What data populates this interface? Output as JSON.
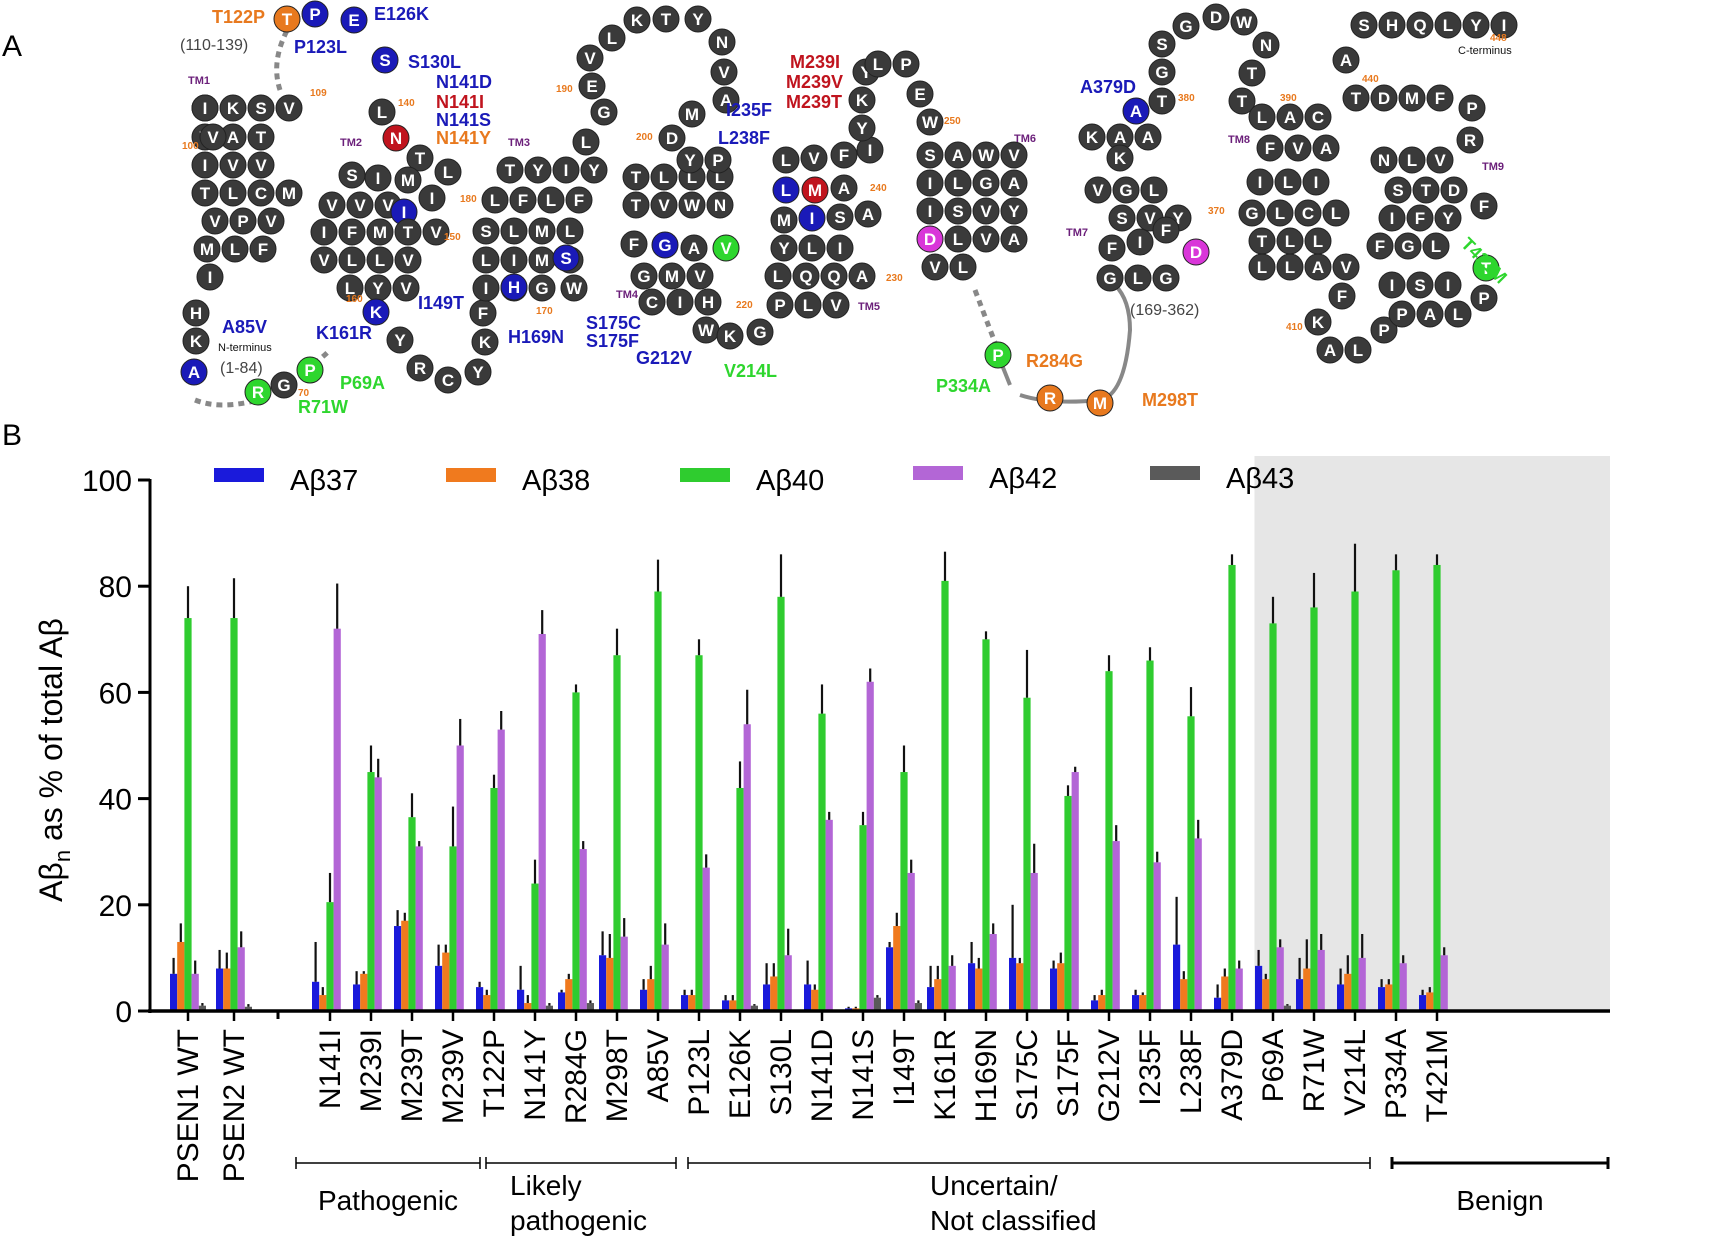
{
  "panel_labels": {
    "a": "A",
    "b": "B"
  },
  "topology": {
    "labels": {
      "tm1": "TM1",
      "tm2": "TM2",
      "tm3": "TM3",
      "tm4": "TM4",
      "tm5": "TM5",
      "tm6": "TM6",
      "tm7": "TM7",
      "tm8": "TM8",
      "tm9": "TM9",
      "n_terminus": "N-terminus",
      "c_terminus": "C-terminus",
      "range_n": "(1-84)",
      "range_110": "(110-139)",
      "range_169": "(169-362)"
    },
    "numbers": [
      "70",
      "100",
      "109",
      "140",
      "150",
      "160",
      "170",
      "180",
      "190",
      "200",
      "220",
      "230",
      "240",
      "250",
      "370",
      "380",
      "390",
      "410",
      "440",
      "448"
    ],
    "variant_labels": [
      {
        "text": "T122P",
        "color": "#e8791e"
      },
      {
        "text": "P123L",
        "color": "#1a1ab8"
      },
      {
        "text": "E126K",
        "color": "#1a1ab8"
      },
      {
        "text": "S130L",
        "color": "#1a1ab8"
      },
      {
        "text": "N141D",
        "color": "#1a1ab8"
      },
      {
        "text": "N141I",
        "color": "#c0141e"
      },
      {
        "text": "N141S",
        "color": "#1a1ab8"
      },
      {
        "text": "N141Y",
        "color": "#e8791e"
      },
      {
        "text": "A85V",
        "color": "#1a1ab8"
      },
      {
        "text": "K161R",
        "color": "#1a1ab8"
      },
      {
        "text": "I149T",
        "color": "#1a1ab8"
      },
      {
        "text": "H169N",
        "color": "#1a1ab8"
      },
      {
        "text": "S175C",
        "color": "#1a1ab8"
      },
      {
        "text": "S175F",
        "color": "#1a1ab8"
      },
      {
        "text": "G212V",
        "color": "#1a1ab8"
      },
      {
        "text": "V214L",
        "color": "#2ed62e"
      },
      {
        "text": "I235F",
        "color": "#1a1ab8"
      },
      {
        "text": "L238F",
        "color": "#1a1ab8"
      },
      {
        "text": "M239I",
        "color": "#c0141e"
      },
      {
        "text": "M239V",
        "color": "#c0141e"
      },
      {
        "text": "M239T",
        "color": "#c0141e"
      },
      {
        "text": "P69A",
        "color": "#2ed62e"
      },
      {
        "text": "R71W",
        "color": "#2ed62e"
      },
      {
        "text": "P334A",
        "color": "#2ed62e"
      },
      {
        "text": "R284G",
        "color": "#e8791e"
      },
      {
        "text": "M298T",
        "color": "#e8791e"
      },
      {
        "text": "A379D",
        "color": "#1a1ab8"
      },
      {
        "text": "T421M",
        "color": "#2ed62e"
      }
    ],
    "residue_colors": {
      "default": "#3a3a3a",
      "pathogenic": "#c0141e",
      "likely_pathogenic": "#e8791e",
      "uncertain": "#1a1ab8",
      "benign": "#2ed62e",
      "magenta": "#d936d9"
    }
  },
  "chart_data": {
    "type": "bar",
    "ylabel": "Aβn as % of total Aβ",
    "ylim": [
      0,
      100
    ],
    "yticks": [
      0,
      20,
      40,
      60,
      80,
      100
    ],
    "legend": [
      {
        "name": "Aβ37",
        "color": "#1a1adb"
      },
      {
        "name": "Aβ38",
        "color": "#f07a1e"
      },
      {
        "name": "Aβ40",
        "color": "#2fcc2f"
      },
      {
        "name": "Aβ42",
        "color": "#b366d6"
      },
      {
        "name": "Aβ43",
        "color": "#5a5a5a"
      }
    ],
    "categories": [
      "PSEN1 WT",
      "PSEN2 WT",
      "N141I",
      "M239I",
      "M239T",
      "M239V",
      "T122P",
      "N141Y",
      "R284G",
      "M298T",
      "A85V",
      "P123L",
      "E126K",
      "S130L",
      "N141D",
      "N141S",
      "I149T",
      "K161R",
      "H169N",
      "S175C",
      "S175F",
      "G212V",
      "I235F",
      "L238F",
      "A379D",
      "P69A",
      "R71W",
      "V214L",
      "P334A",
      "T421M"
    ],
    "series": [
      {
        "name": "Aβ37",
        "values": [
          7,
          8,
          5.5,
          5,
          16,
          8.5,
          4.5,
          4,
          3.5,
          10.5,
          4,
          3,
          2,
          5,
          5,
          0.5,
          12,
          4.5,
          9,
          10,
          8,
          2,
          3,
          12.5,
          2.5,
          8.5,
          6,
          5,
          4.5,
          3
        ]
      },
      {
        "name": "Aβ38",
        "values": [
          13,
          8,
          3,
          7,
          17,
          11,
          3,
          1.5,
          6,
          10,
          6,
          3,
          2,
          6.5,
          4,
          0.5,
          16,
          6,
          8,
          9,
          9,
          3,
          3,
          6,
          6.5,
          6,
          8,
          7,
          5,
          3.5
        ]
      },
      {
        "name": "Aβ40",
        "values": [
          74,
          74,
          20.5,
          45,
          36.5,
          31,
          42,
          24,
          60,
          67,
          79,
          67,
          42,
          78,
          56,
          35,
          45,
          81,
          70,
          59,
          40.5,
          64,
          66,
          55.5,
          84,
          73,
          76,
          79,
          83,
          84
        ]
      },
      {
        "name": "Aβ42",
        "values": [
          7,
          12,
          72,
          44,
          31,
          50,
          53,
          71,
          30.5,
          14,
          12.5,
          27,
          54,
          10.5,
          36,
          62,
          26,
          8.5,
          14.5,
          26,
          45,
          32,
          28,
          32.5,
          8,
          12,
          11.5,
          10,
          9,
          10.5
        ]
      },
      {
        "name": "Aβ43",
        "values": [
          1,
          0.8,
          0,
          0,
          0,
          0,
          0,
          1,
          1.5,
          0,
          0,
          0,
          1,
          0,
          0,
          2.5,
          1.5,
          0,
          0,
          0,
          0,
          0,
          0,
          0,
          0,
          1,
          0,
          0,
          0,
          0
        ]
      }
    ],
    "errors": [
      [
        3,
        3.5,
        7.5,
        2.5,
        3,
        4,
        1,
        4.5,
        0.5,
        4.5,
        2,
        1,
        1,
        4,
        4.5,
        0.3,
        1,
        4,
        4,
        10,
        1.5,
        1,
        1,
        9,
        2.5,
        3,
        4,
        3,
        1.5,
        1
      ],
      [
        3.5,
        3,
        1.5,
        0.5,
        1.5,
        1.5,
        1,
        1.5,
        1,
        4.5,
        2.5,
        1,
        1,
        2.5,
        1,
        0.3,
        2.5,
        2.5,
        2,
        1,
        2,
        1,
        0.5,
        1.5,
        1.5,
        1,
        5.5,
        3.5,
        1,
        1
      ],
      [
        6,
        7.5,
        5.5,
        5,
        4.5,
        7.5,
        2.5,
        4.5,
        1.5,
        5,
        6,
        3,
        5,
        8,
        5.5,
        2.5,
        5,
        5.5,
        1.5,
        9,
        2,
        3,
        2.5,
        5.5,
        2,
        5,
        6.5,
        9,
        3,
        2
      ],
      [
        2.5,
        3,
        8.5,
        3.5,
        1,
        5,
        3.5,
        4.5,
        1.5,
        3.5,
        4,
        2.5,
        6.5,
        5,
        1.5,
        2.5,
        2.5,
        2,
        2,
        5.5,
        1,
        3,
        2,
        3.5,
        1.5,
        1.5,
        3,
        4.5,
        1.5,
        1.5
      ],
      [
        0.5,
        0.5,
        0,
        0,
        0,
        0,
        0,
        0.5,
        0.5,
        0,
        0,
        0,
        0.3,
        0,
        0,
        0.5,
        0.5,
        0,
        0,
        0,
        0,
        0,
        0,
        0,
        0,
        0.3,
        0,
        0,
        0,
        0
      ]
    ],
    "groups": [
      {
        "label": "Pathogenic",
        "from": 2,
        "to": 5
      },
      {
        "label": "Likely pathogenic",
        "from": 6,
        "to": 9
      },
      {
        "label": "Uncertain/ Not classified",
        "from": 10,
        "to": 24
      },
      {
        "label": "Benign",
        "from": 25,
        "to": 29
      }
    ],
    "shaded_group": "Benign",
    "shade_color": "#e6e6e6"
  }
}
